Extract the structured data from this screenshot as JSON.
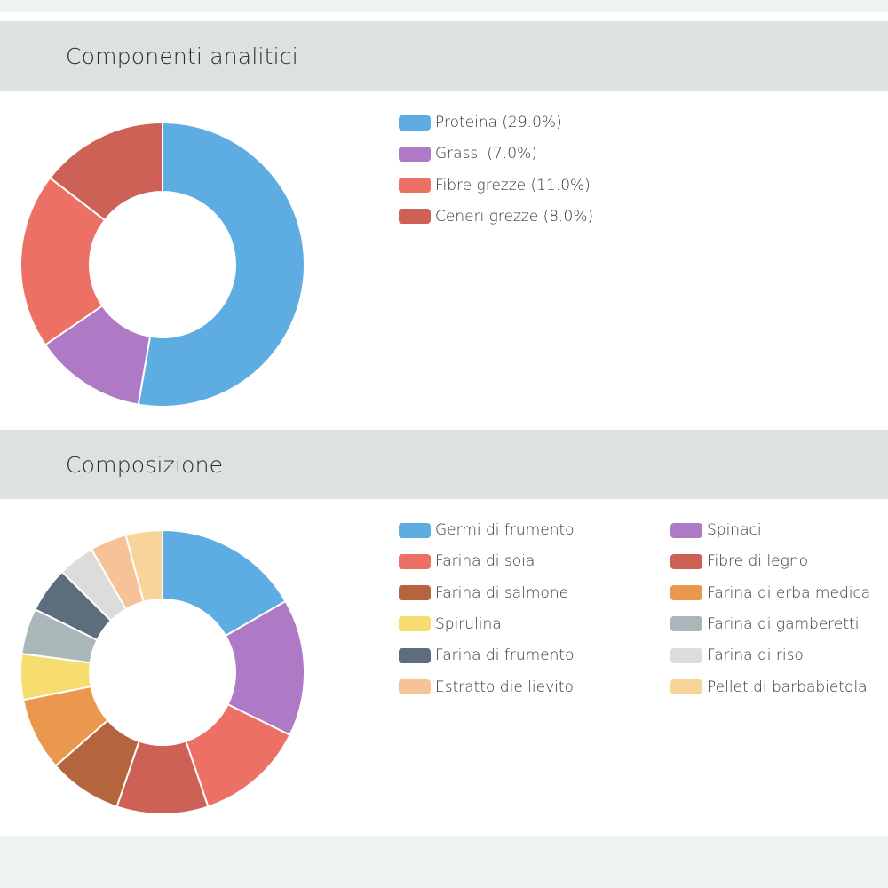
{
  "sections": [
    {
      "title": "Componenti analitici",
      "chart_data": {
        "type": "pie",
        "title": "Componenti analitici",
        "donut": true,
        "categories": [
          "Proteina (29.0%)",
          "Grassi (7.0%)",
          "Fibre grezze (11.0%)",
          "Ceneri grezze (8.0%)"
        ],
        "values": [
          29.0,
          7.0,
          11.0,
          8.0
        ],
        "colors": [
          "#5dade2",
          "#af7ac5",
          "#ec7063",
          "#cd6155"
        ],
        "legend": "right"
      }
    },
    {
      "title": "Composizione",
      "chart_data": {
        "type": "pie",
        "title": "Composizione",
        "donut": true,
        "categories": [
          "Germi di frumento",
          "Spinaci",
          "Farina di soia",
          "Fibre di legno",
          "Farina di salmone",
          "Farina di erba medica",
          "Spirulina",
          "Farina di gamberetti",
          "Farina di frumento",
          "Farina di riso",
          "Estratto die lievito",
          "Pellet di barbabietola"
        ],
        "values": [
          16,
          15,
          12,
          10,
          8,
          8,
          5,
          5,
          5,
          4,
          4,
          4
        ],
        "colors": [
          "#5dade2",
          "#af7ac5",
          "#ec7063",
          "#cd6155",
          "#b5653d",
          "#eb984e",
          "#f7dc6f",
          "#aab7b8",
          "#5d6d7e",
          "#dcdcdc",
          "#f5c396",
          "#f8d49a"
        ],
        "legend": "right"
      }
    }
  ]
}
